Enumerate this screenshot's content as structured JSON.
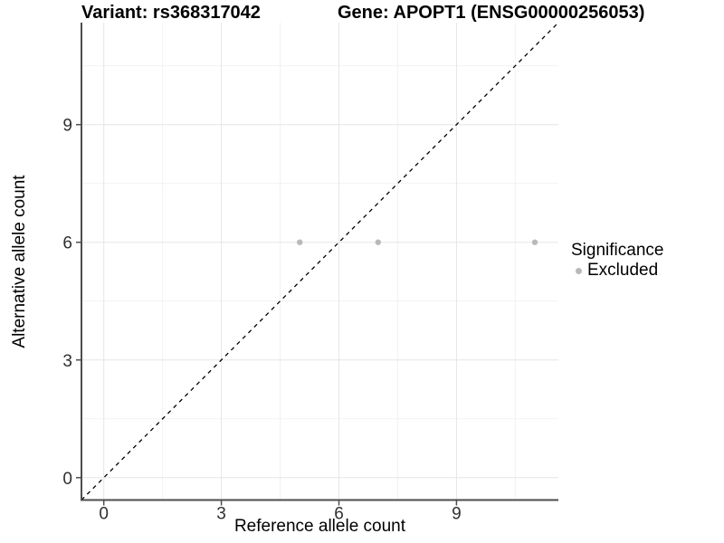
{
  "titles": {
    "variant": "Variant: rs368317042",
    "gene": "Gene: APOPT1 (ENSG00000256053)"
  },
  "legend": {
    "title": "Significance",
    "items": [
      {
        "label": "Excluded",
        "color": "#b9b9b9"
      }
    ]
  },
  "chart_data": {
    "type": "scatter",
    "title": "Variant: rs368317042   Gene: APOPT1 (ENSG00000256053)",
    "xlabel": "Reference allele count",
    "ylabel": "Alternative allele count",
    "xlim": [
      -0.57,
      11.6
    ],
    "ylim": [
      -0.57,
      11.6
    ],
    "x_major_ticks": [
      0,
      3,
      6,
      9
    ],
    "y_major_ticks": [
      0,
      3,
      6,
      9
    ],
    "x_minor_gridlines": [
      1.5,
      4.5,
      7.5,
      10.5
    ],
    "y_minor_gridlines": [
      1.5,
      4.5,
      7.5,
      10.5
    ],
    "grid": true,
    "legend_position": "right",
    "series": [
      {
        "name": "Excluded",
        "color": "#b9b9b9",
        "marker": "circle",
        "points": [
          [
            5,
            6
          ],
          [
            7,
            6
          ],
          [
            11,
            6
          ]
        ]
      }
    ],
    "reference_line": {
      "type": "identity y=x",
      "style": "dashed",
      "color": "#000000"
    }
  },
  "colors": {
    "background": "#ffffff",
    "grid_major": "#e6e6e6",
    "grid_minor": "#f2f2f2",
    "axis_line": "#4d4d4d",
    "tick_label": "#303030",
    "point": "#b9b9b9"
  }
}
